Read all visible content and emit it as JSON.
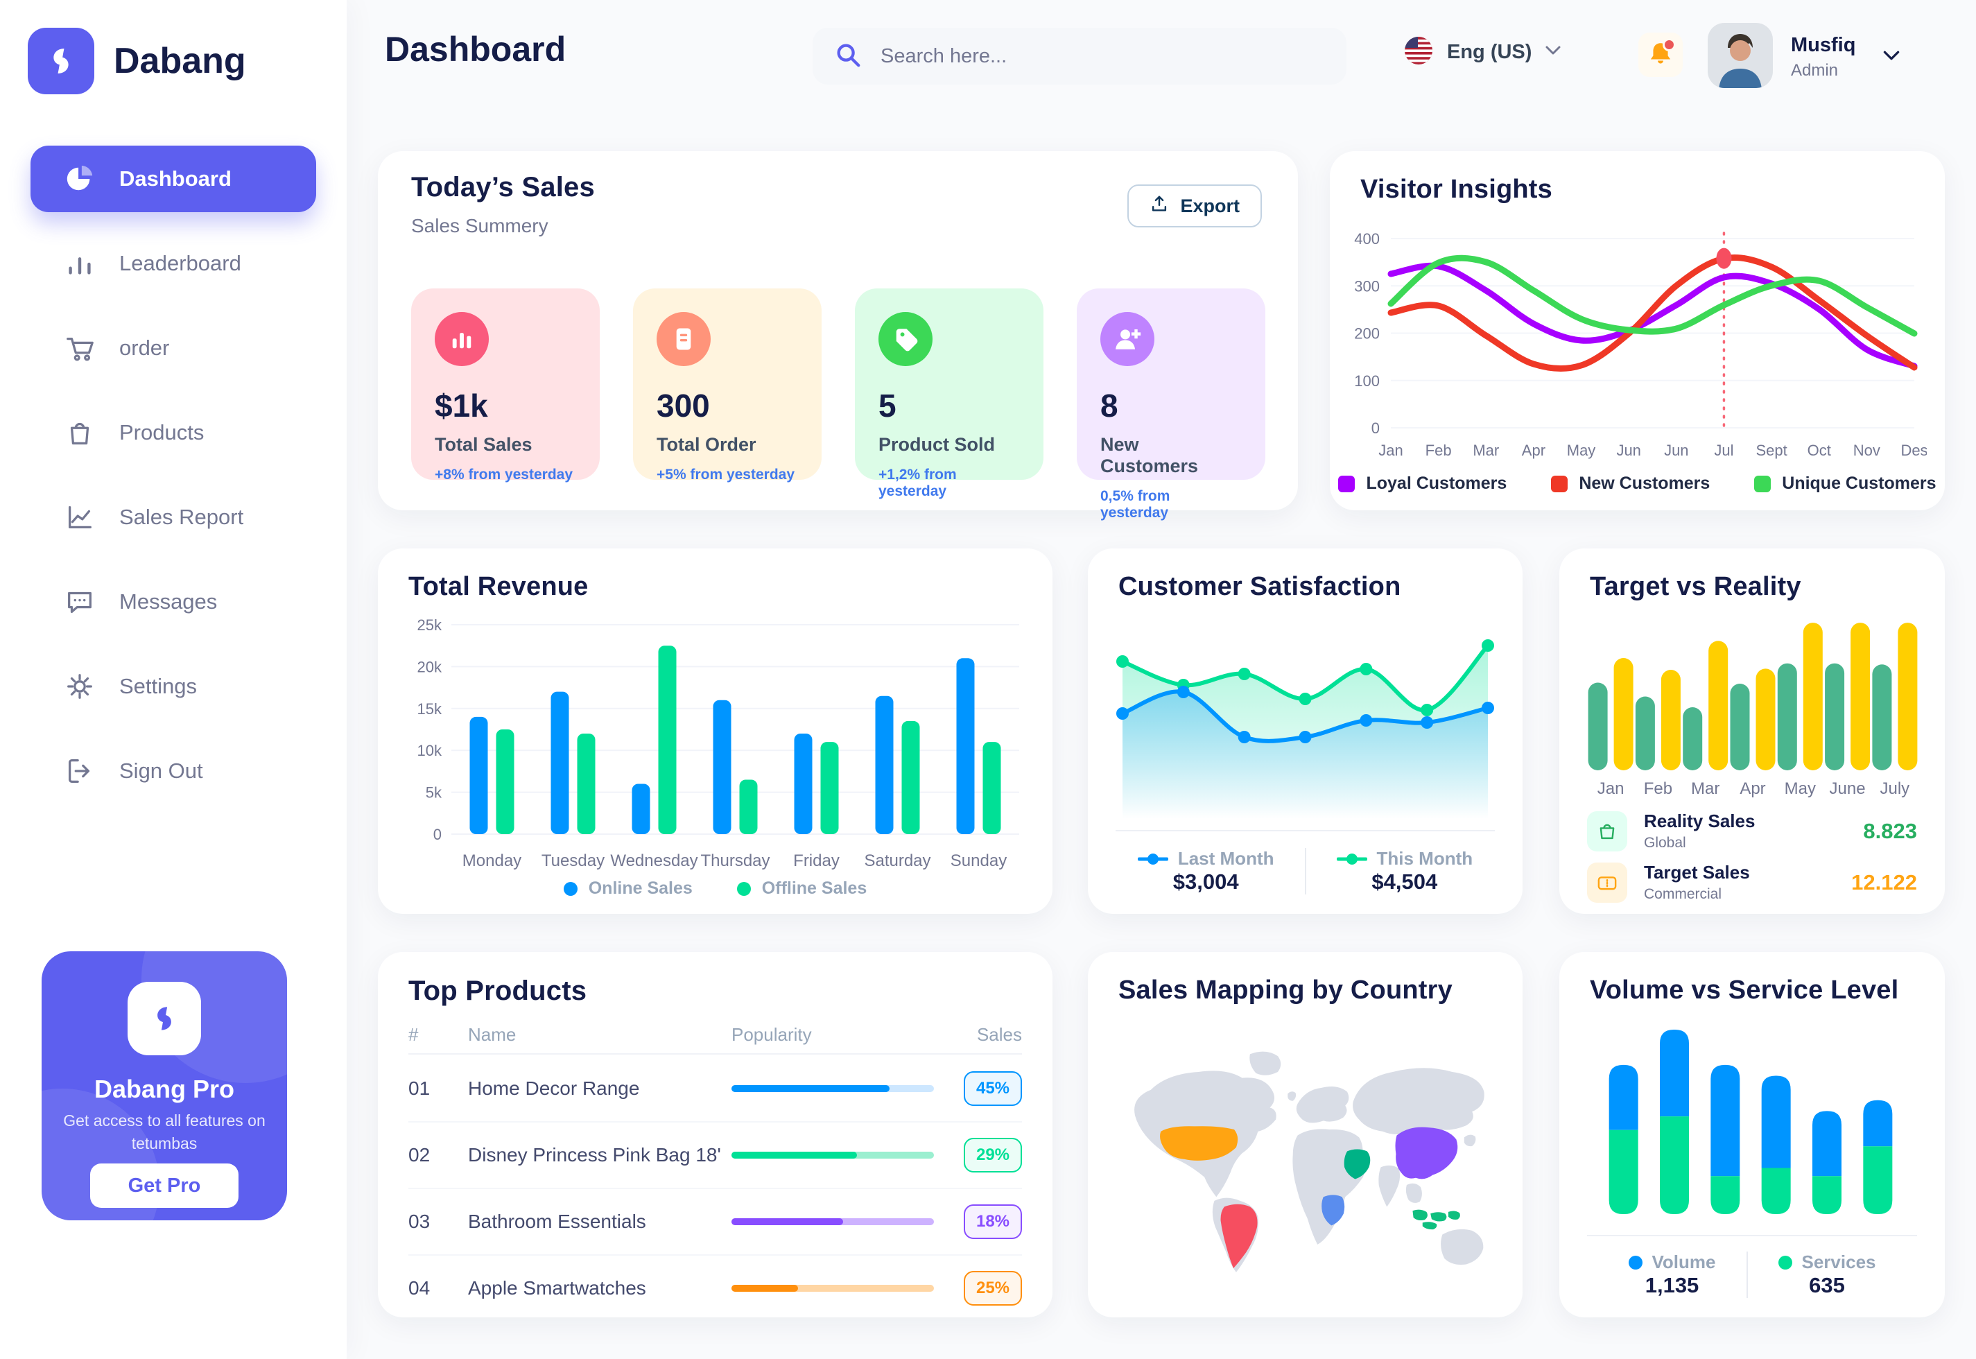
{
  "app": {
    "brand": "Dabang"
  },
  "header": {
    "page_title": "Dashboard",
    "search_placeholder": "Search here...",
    "language": {
      "label": "Eng (US)",
      "flag_icon": "us-flag-icon"
    },
    "notifications": {
      "icon": "bell-icon",
      "has_unread": true
    },
    "user": {
      "name": "Musfiq",
      "role": "Admin",
      "avatar_icon": "person-avatar"
    }
  },
  "sidebar": {
    "items": [
      {
        "label": "Dashboard",
        "icon": "pie-chart-icon",
        "active": true
      },
      {
        "label": "Leaderboard",
        "icon": "bar-chart-icon",
        "active": false
      },
      {
        "label": "order",
        "icon": "cart-icon",
        "active": false
      },
      {
        "label": "Products",
        "icon": "bag-icon",
        "active": false
      },
      {
        "label": "Sales Report",
        "icon": "line-chart-icon",
        "active": false
      },
      {
        "label": "Messages",
        "icon": "message-icon",
        "active": false
      },
      {
        "label": "Settings",
        "icon": "gear-icon",
        "active": false
      },
      {
        "label": "Sign Out",
        "icon": "sign-out-icon",
        "active": false
      }
    ],
    "pro_card": {
      "title": "Dabang Pro",
      "description": "Get access to all features on tetumbas",
      "button_label": "Get Pro",
      "logo_icon": "dabang-logo-icon"
    }
  },
  "todays_sales": {
    "title": "Today’s Sales",
    "subtitle": "Sales Summery",
    "export_label": "Export",
    "cards": [
      {
        "value": "$1k",
        "label": "Total Sales",
        "delta": "+8% from yesterday",
        "bg": "#FFE2E5",
        "icon_bg": "#FA5A7D",
        "icon": "chart-bar-icon"
      },
      {
        "value": "300",
        "label": "Total Order",
        "delta": "+5% from yesterday",
        "bg": "#FFF4DE",
        "icon_bg": "#FF947A",
        "icon": "order-note-icon"
      },
      {
        "value": "5",
        "label": "Product Sold",
        "delta": "+1,2% from yesterday",
        "bg": "#DCFCE7",
        "icon_bg": "#3CD856",
        "icon": "tag-icon"
      },
      {
        "value": "8",
        "label": "New Customers",
        "delta": "0,5% from yesterday",
        "bg": "#F3E8FF",
        "icon_bg": "#BF83FF",
        "icon": "user-plus-icon"
      }
    ]
  },
  "chart_data": [
    {
      "id": "visitor_insights",
      "type": "line",
      "title": "Visitor Insights",
      "x_labels": [
        "Jan",
        "Feb",
        "Mar",
        "Apr",
        "May",
        "Jun",
        "Jun",
        "Jul",
        "Sept",
        "Oct",
        "Nov",
        "Des"
      ],
      "y_ticks": [
        0,
        100,
        200,
        300,
        400
      ],
      "ylim": [
        0,
        400
      ],
      "grid": true,
      "legend_position": "bottom",
      "series": [
        {
          "name": "Loyal Customers",
          "color": "#A700FF",
          "values": [
            325,
            342,
            290,
            220,
            185,
            205,
            260,
            318,
            305,
            250,
            165,
            130
          ]
        },
        {
          "name": "New Customers",
          "color": "#EF3826",
          "values": [
            243,
            258,
            195,
            135,
            132,
            200,
            300,
            358,
            340,
            270,
            195,
            128
          ]
        },
        {
          "name": "Unique Customers",
          "color": "#3CD856",
          "values": [
            262,
            348,
            350,
            290,
            230,
            207,
            210,
            260,
            300,
            310,
            255,
            200
          ]
        }
      ],
      "annotation": {
        "x_index": 7,
        "x_label": "Jul",
        "series": "New Customers",
        "marker_value": 358,
        "line_color": "#F64E60"
      }
    },
    {
      "id": "total_revenue",
      "type": "bar",
      "title": "Total Revenue",
      "categories": [
        "Monday",
        "Tuesday",
        "Wednesday",
        "Thursday",
        "Friday",
        "Saturday",
        "Sunday"
      ],
      "y_tick_labels": [
        "0",
        "5k",
        "10k",
        "15k",
        "20k",
        "25k"
      ],
      "ylim": [
        0,
        25000
      ],
      "grid": true,
      "legend_position": "bottom",
      "series": [
        {
          "name": "Online Sales",
          "color": "#0095FF",
          "values": [
            14000,
            17000,
            6000,
            16000,
            12000,
            16500,
            21000
          ]
        },
        {
          "name": "Offline Sales",
          "color": "#00E096",
          "values": [
            12500,
            12000,
            22500,
            6500,
            11000,
            13500,
            11000
          ]
        }
      ]
    },
    {
      "id": "customer_satisfaction",
      "type": "area",
      "title": "Customer Satisfaction",
      "ylim": [
        0,
        100
      ],
      "grid": false,
      "legend_position": "bottom",
      "series": [
        {
          "name": "Last Month",
          "color": "#0095FF",
          "total": "$3,004",
          "values": [
            55,
            67,
            42,
            42,
            51,
            50,
            58
          ]
        },
        {
          "name": "This Month",
          "color": "#00E096",
          "total": "$4,504",
          "values": [
            84,
            71,
            77,
            63,
            80,
            57,
            93
          ]
        }
      ]
    },
    {
      "id": "target_vs_reality",
      "type": "bar",
      "title": "Target vs Reality",
      "categories": [
        "Jan",
        "Feb",
        "Mar",
        "Apr",
        "May",
        "June",
        "July"
      ],
      "ylim": [
        0,
        14
      ],
      "grid": false,
      "legend_position": "bottom-rows",
      "series": [
        {
          "name": "Reality Sales",
          "subtitle": "Global",
          "color": "#4AB58E",
          "value_label": "8.823",
          "value_color": "#27AE60",
          "icon": "bag-small-icon",
          "icon_bg": "#E2FFF3",
          "values": [
            8.2,
            6.9,
            5.9,
            8.1,
            10.0,
            10.0,
            9.9
          ]
        },
        {
          "name": "Target Sales",
          "subtitle": "Commercial",
          "color": "#FFCF00",
          "value_label": "12.122",
          "value_color": "#FFA412",
          "icon": "ticket-icon",
          "icon_bg": "#FFF4DE",
          "values": [
            10.5,
            9.4,
            12.1,
            9.5,
            13.8,
            13.8,
            13.8
          ]
        }
      ]
    },
    {
      "id": "volume_service",
      "type": "stacked-bar",
      "title": "Volume vs Service Level",
      "grid": false,
      "legend_position": "bottom",
      "series": [
        {
          "name": "Volume",
          "color": "#0095FF",
          "total": "1,135",
          "values": [
            24,
            32,
            41,
            34,
            24,
            17
          ]
        },
        {
          "name": "Services",
          "color": "#00E096",
          "total": "635",
          "values": [
            31,
            36,
            14,
            17,
            14,
            25
          ]
        }
      ]
    }
  ],
  "top_products": {
    "title": "Top Products",
    "columns": [
      "#",
      "Name",
      "Popularity",
      "Sales"
    ],
    "rows": [
      {
        "num": "01",
        "name": "Home Decor Range",
        "popularity": 78,
        "sales": "45%",
        "color": "#0095FF",
        "track": "#CDE7FF"
      },
      {
        "num": "02",
        "name": "Disney Princess Pink Bag 18'",
        "popularity": 62,
        "sales": "29%",
        "color": "#00E096",
        "track": "#9BEFD0"
      },
      {
        "num": "03",
        "name": "Bathroom Essentials",
        "popularity": 55,
        "sales": "18%",
        "color": "#884DFF",
        "track": "#CDB2FF"
      },
      {
        "num": "04",
        "name": "Apple Smartwatches",
        "popularity": 33,
        "sales": "25%",
        "color": "#FF8F0D",
        "track": "#FFD6A4"
      }
    ]
  },
  "sales_map": {
    "title": "Sales Mapping by Country",
    "base_color": "#D9DDE6",
    "countries": [
      {
        "key": "usa",
        "name": "United States",
        "color": "#FFA412"
      },
      {
        "key": "brazil",
        "name": "Brazil",
        "color": "#F64E60"
      },
      {
        "key": "congo",
        "name": "DR Congo",
        "color": "#5A8DEE"
      },
      {
        "key": "saudi",
        "name": "Saudi Arabia",
        "color": "#00B286"
      },
      {
        "key": "china",
        "name": "China",
        "color": "#8950FC"
      },
      {
        "key": "indonesia",
        "name": "Indonesia",
        "color": "#0FBF7F"
      }
    ]
  }
}
